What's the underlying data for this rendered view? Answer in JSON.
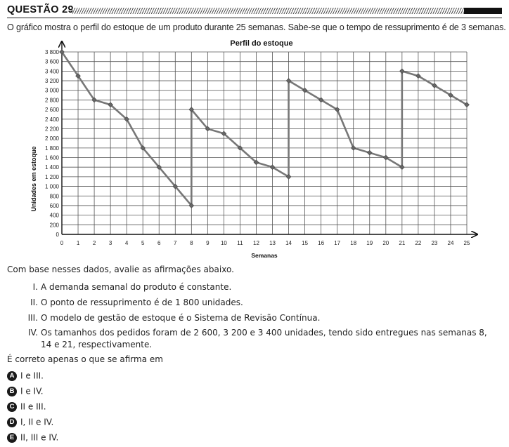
{
  "header": {
    "question_title": "QUESTÃO 29"
  },
  "intro": "O gráfico mostra o perfil do estoque de um produto durante 25 semanas. Sabe-se que o tempo de ressuprimento é de 3 semanas.",
  "chart_data": {
    "type": "line",
    "title": "Perfil do estoque",
    "xlabel": "Semanas",
    "ylabel": "Unidades em estoque",
    "x_ticks": [
      "0",
      "1",
      "2",
      "3",
      "4",
      "5",
      "6",
      "7",
      "8",
      "9",
      "10",
      "11",
      "12",
      "13",
      "14",
      "15",
      "16",
      "17",
      "18",
      "19",
      "20",
      "21",
      "22",
      "23",
      "24",
      "25"
    ],
    "y_ticks": [
      "0",
      "200",
      "400",
      "600",
      "800",
      "1 000",
      "1 200",
      "1 400",
      "1 600",
      "1 800",
      "2 000",
      "2 200",
      "2 400",
      "2 600",
      "2 800",
      "3 000",
      "3 200",
      "3 400",
      "3 600",
      "3 800"
    ],
    "xlim": [
      0,
      25
    ],
    "ylim": [
      0,
      3800
    ],
    "grid": true,
    "series": [
      {
        "points": [
          [
            0,
            3800
          ],
          [
            1,
            3300
          ],
          [
            2,
            2800
          ],
          [
            3,
            2700
          ],
          [
            4,
            2400
          ],
          [
            5,
            1800
          ],
          [
            6,
            1400
          ],
          [
            7,
            1000
          ],
          [
            8,
            600
          ],
          [
            8,
            2600
          ],
          [
            9,
            2200
          ],
          [
            10,
            2100
          ],
          [
            11,
            1800
          ],
          [
            12,
            1500
          ],
          [
            13,
            1400
          ],
          [
            14,
            1200
          ],
          [
            14,
            3200
          ],
          [
            15,
            3000
          ],
          [
            16,
            2800
          ],
          [
            17,
            2600
          ],
          [
            18,
            1800
          ],
          [
            19,
            1700
          ],
          [
            20,
            1600
          ],
          [
            21,
            1400
          ],
          [
            21,
            3400
          ],
          [
            22,
            3300
          ],
          [
            23,
            3100
          ],
          [
            24,
            2900
          ],
          [
            25,
            2700
          ]
        ]
      }
    ]
  },
  "prompt": "Com base nesses dados, avalie as afirmações abaixo.",
  "statements": [
    {
      "num": "I.",
      "text": "A demanda semanal do produto é constante."
    },
    {
      "num": "II.",
      "text": "O ponto de ressuprimento é de 1 800 unidades."
    },
    {
      "num": "III.",
      "text": "O modelo de gestão de estoque é o Sistema de Revisão Contínua."
    },
    {
      "num": "IV.",
      "text": "Os tamanhos dos pedidos foram de 2 600, 3 200 e 3 400 unidades, tendo sido entregues nas semanas 8, 14 e 21, respectivamente."
    }
  ],
  "ask": "É correto apenas o que se afirma em",
  "options": [
    {
      "letter": "A",
      "text": "I e III."
    },
    {
      "letter": "B",
      "text": "I e IV."
    },
    {
      "letter": "C",
      "text": "II e III."
    },
    {
      "letter": "D",
      "text": "I, II e IV."
    },
    {
      "letter": "E",
      "text": "II, III e IV."
    }
  ]
}
